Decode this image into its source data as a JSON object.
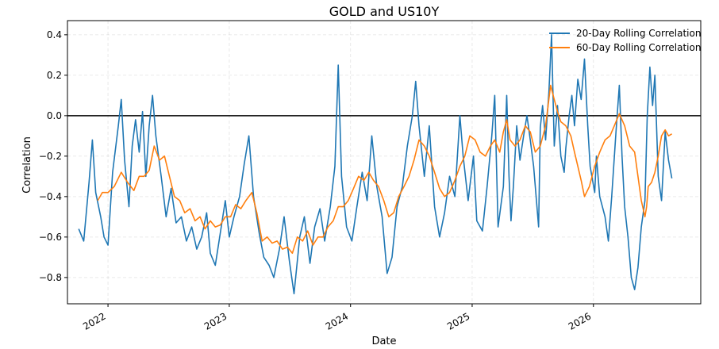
{
  "chart_data": {
    "type": "line",
    "title": "GOLD and US10Y",
    "xlabel": "Date",
    "ylabel": "Correlation",
    "xlim": [
      "2021-09-01",
      "2026-11-20"
    ],
    "ylim": [
      -0.93,
      0.47
    ],
    "x_ticks": [
      {
        "date": "2022-01-01",
        "label": "2022"
      },
      {
        "date": "2023-01-01",
        "label": "2023"
      },
      {
        "date": "2024-01-01",
        "label": "2024"
      },
      {
        "date": "2025-01-01",
        "label": "2025"
      },
      {
        "date": "2026-01-01",
        "label": "2026"
      }
    ],
    "y_ticks": [
      -0.8,
      -0.6,
      -0.4,
      -0.2,
      0.0,
      0.2,
      0.4
    ],
    "y_tick_labels": [
      "−0.8",
      "−0.6",
      "−0.4",
      "−0.2",
      "0.0",
      "0.2",
      "0.4"
    ],
    "reference_line": 0.0,
    "grid": true,
    "legend_position": "top-right",
    "series": [
      {
        "name": "20-Day Rolling Correlation",
        "color": "#1f77b4",
        "points": [
          [
            "2021-10-05",
            -0.56
          ],
          [
            "2021-10-20",
            -0.62
          ],
          [
            "2021-11-05",
            -0.33
          ],
          [
            "2021-11-15",
            -0.12
          ],
          [
            "2021-11-25",
            -0.38
          ],
          [
            "2021-12-10",
            -0.5
          ],
          [
            "2021-12-20",
            -0.6
          ],
          [
            "2022-01-01",
            -0.64
          ],
          [
            "2022-01-15",
            -0.28
          ],
          [
            "2022-02-01",
            -0.05
          ],
          [
            "2022-02-10",
            0.08
          ],
          [
            "2022-02-20",
            -0.22
          ],
          [
            "2022-03-05",
            -0.45
          ],
          [
            "2022-03-15",
            -0.15
          ],
          [
            "2022-03-25",
            -0.02
          ],
          [
            "2022-04-05",
            -0.18
          ],
          [
            "2022-04-15",
            0.02
          ],
          [
            "2022-04-25",
            -0.3
          ],
          [
            "2022-05-05",
            -0.05
          ],
          [
            "2022-05-15",
            0.1
          ],
          [
            "2022-05-25",
            -0.1
          ],
          [
            "2022-06-10",
            -0.3
          ],
          [
            "2022-06-25",
            -0.5
          ],
          [
            "2022-07-10",
            -0.36
          ],
          [
            "2022-07-25",
            -0.53
          ],
          [
            "2022-08-10",
            -0.5
          ],
          [
            "2022-08-25",
            -0.62
          ],
          [
            "2022-09-10",
            -0.55
          ],
          [
            "2022-09-25",
            -0.66
          ],
          [
            "2022-10-10",
            -0.6
          ],
          [
            "2022-10-25",
            -0.48
          ],
          [
            "2022-11-05",
            -0.68
          ],
          [
            "2022-11-20",
            -0.74
          ],
          [
            "2022-12-05",
            -0.58
          ],
          [
            "2022-12-20",
            -0.42
          ],
          [
            "2023-01-01",
            -0.6
          ],
          [
            "2023-01-15",
            -0.5
          ],
          [
            "2023-02-01",
            -0.4
          ],
          [
            "2023-02-15",
            -0.24
          ],
          [
            "2023-03-01",
            -0.1
          ],
          [
            "2023-03-15",
            -0.4
          ],
          [
            "2023-04-01",
            -0.58
          ],
          [
            "2023-04-15",
            -0.7
          ],
          [
            "2023-05-01",
            -0.74
          ],
          [
            "2023-05-15",
            -0.8
          ],
          [
            "2023-06-01",
            -0.66
          ],
          [
            "2023-06-15",
            -0.5
          ],
          [
            "2023-07-01",
            -0.72
          ],
          [
            "2023-07-15",
            -0.88
          ],
          [
            "2023-08-01",
            -0.6
          ],
          [
            "2023-08-15",
            -0.5
          ],
          [
            "2023-09-01",
            -0.73
          ],
          [
            "2023-09-15",
            -0.55
          ],
          [
            "2023-10-01",
            -0.46
          ],
          [
            "2023-10-15",
            -0.62
          ],
          [
            "2023-11-01",
            -0.45
          ],
          [
            "2023-11-15",
            -0.25
          ],
          [
            "2023-11-25",
            0.25
          ],
          [
            "2023-12-05",
            -0.3
          ],
          [
            "2023-12-20",
            -0.55
          ],
          [
            "2024-01-05",
            -0.62
          ],
          [
            "2024-01-20",
            -0.45
          ],
          [
            "2024-02-05",
            -0.28
          ],
          [
            "2024-02-20",
            -0.42
          ],
          [
            "2024-03-05",
            -0.1
          ],
          [
            "2024-03-20",
            -0.35
          ],
          [
            "2024-04-05",
            -0.5
          ],
          [
            "2024-04-20",
            -0.78
          ],
          [
            "2024-05-05",
            -0.7
          ],
          [
            "2024-05-20",
            -0.45
          ],
          [
            "2024-06-05",
            -0.35
          ],
          [
            "2024-06-20",
            -0.15
          ],
          [
            "2024-07-05",
            0.0
          ],
          [
            "2024-07-15",
            0.17
          ],
          [
            "2024-07-25",
            -0.05
          ],
          [
            "2024-08-10",
            -0.3
          ],
          [
            "2024-08-25",
            -0.05
          ],
          [
            "2024-09-10",
            -0.45
          ],
          [
            "2024-09-25",
            -0.6
          ],
          [
            "2024-10-10",
            -0.48
          ],
          [
            "2024-10-25",
            -0.3
          ],
          [
            "2024-11-10",
            -0.4
          ],
          [
            "2024-11-25",
            0.0
          ],
          [
            "2024-12-05",
            -0.2
          ],
          [
            "2024-12-20",
            -0.42
          ],
          [
            "2025-01-05",
            -0.2
          ],
          [
            "2025-01-15",
            -0.52
          ],
          [
            "2025-02-01",
            -0.57
          ],
          [
            "2025-02-15",
            -0.35
          ],
          [
            "2025-03-01",
            -0.1
          ],
          [
            "2025-03-10",
            0.1
          ],
          [
            "2025-03-20",
            -0.55
          ],
          [
            "2025-04-05",
            -0.35
          ],
          [
            "2025-04-15",
            0.1
          ],
          [
            "2025-04-22",
            -0.3
          ],
          [
            "2025-04-28",
            -0.52
          ],
          [
            "2025-05-05",
            -0.35
          ],
          [
            "2025-05-15",
            -0.05
          ],
          [
            "2025-05-25",
            -0.22
          ],
          [
            "2025-06-05",
            -0.1
          ],
          [
            "2025-06-15",
            0.0
          ],
          [
            "2025-06-25",
            -0.12
          ],
          [
            "2025-07-05",
            -0.25
          ],
          [
            "2025-07-20",
            -0.55
          ],
          [
            "2025-07-25",
            -0.06
          ],
          [
            "2025-08-01",
            0.05
          ],
          [
            "2025-08-10",
            -0.12
          ],
          [
            "2025-08-20",
            0.12
          ],
          [
            "2025-08-28",
            0.4
          ],
          [
            "2025-09-05",
            -0.15
          ],
          [
            "2025-09-15",
            0.05
          ],
          [
            "2025-09-25",
            -0.2
          ],
          [
            "2025-10-05",
            -0.28
          ],
          [
            "2025-10-10",
            -0.16
          ],
          [
            "2025-10-20",
            0.0
          ],
          [
            "2025-10-28",
            0.1
          ],
          [
            "2025-11-05",
            -0.05
          ],
          [
            "2025-11-15",
            0.18
          ],
          [
            "2025-11-25",
            0.08
          ],
          [
            "2025-12-05",
            0.28
          ],
          [
            "2025-12-15",
            -0.05
          ],
          [
            "2025-12-22",
            -0.25
          ],
          [
            "2026-01-05",
            -0.38
          ],
          [
            "2026-01-10",
            -0.2
          ],
          [
            "2026-01-20",
            -0.4
          ],
          [
            "2026-02-05",
            -0.5
          ],
          [
            "2026-02-15",
            -0.62
          ],
          [
            "2026-02-25",
            -0.4
          ],
          [
            "2026-03-10",
            -0.08
          ],
          [
            "2026-03-20",
            0.15
          ],
          [
            "2026-03-28",
            -0.2
          ],
          [
            "2026-04-05",
            -0.45
          ],
          [
            "2026-04-15",
            -0.6
          ],
          [
            "2026-04-25",
            -0.8
          ],
          [
            "2026-05-05",
            -0.86
          ],
          [
            "2026-05-15",
            -0.75
          ],
          [
            "2026-05-25",
            -0.55
          ],
          [
            "2026-06-05",
            -0.42
          ],
          [
            "2026-06-12",
            0.0
          ],
          [
            "2026-06-20",
            0.24
          ],
          [
            "2026-06-28",
            0.05
          ],
          [
            "2026-07-05",
            0.2
          ],
          [
            "2026-07-15",
            -0.3
          ],
          [
            "2026-07-25",
            -0.42
          ],
          [
            "2026-08-05",
            -0.08
          ],
          [
            "2026-08-15",
            -0.22
          ],
          [
            "2026-08-25",
            -0.31
          ]
        ]
      },
      {
        "name": "60-Day Rolling Correlation",
        "color": "#ff7f0e",
        "points": [
          [
            "2021-12-01",
            -0.42
          ],
          [
            "2021-12-15",
            -0.38
          ],
          [
            "2022-01-01",
            -0.38
          ],
          [
            "2022-01-20",
            -0.35
          ],
          [
            "2022-02-10",
            -0.28
          ],
          [
            "2022-03-01",
            -0.33
          ],
          [
            "2022-03-20",
            -0.37
          ],
          [
            "2022-04-05",
            -0.3
          ],
          [
            "2022-04-20",
            -0.3
          ],
          [
            "2022-05-05",
            -0.27
          ],
          [
            "2022-05-20",
            -0.15
          ],
          [
            "2022-06-05",
            -0.22
          ],
          [
            "2022-06-20",
            -0.2
          ],
          [
            "2022-07-05",
            -0.3
          ],
          [
            "2022-07-20",
            -0.4
          ],
          [
            "2022-08-05",
            -0.42
          ],
          [
            "2022-08-20",
            -0.48
          ],
          [
            "2022-09-05",
            -0.46
          ],
          [
            "2022-09-20",
            -0.52
          ],
          [
            "2022-10-05",
            -0.5
          ],
          [
            "2022-10-20",
            -0.56
          ],
          [
            "2022-11-05",
            -0.52
          ],
          [
            "2022-11-20",
            -0.55
          ],
          [
            "2022-12-05",
            -0.54
          ],
          [
            "2022-12-20",
            -0.5
          ],
          [
            "2023-01-05",
            -0.5
          ],
          [
            "2023-01-20",
            -0.44
          ],
          [
            "2023-02-05",
            -0.46
          ],
          [
            "2023-02-20",
            -0.42
          ],
          [
            "2023-03-10",
            -0.38
          ],
          [
            "2023-03-25",
            -0.48
          ],
          [
            "2023-04-10",
            -0.62
          ],
          [
            "2023-04-25",
            -0.6
          ],
          [
            "2023-05-10",
            -0.63
          ],
          [
            "2023-05-25",
            -0.62
          ],
          [
            "2023-06-10",
            -0.66
          ],
          [
            "2023-06-25",
            -0.65
          ],
          [
            "2023-07-10",
            -0.68
          ],
          [
            "2023-07-25",
            -0.6
          ],
          [
            "2023-08-10",
            -0.62
          ],
          [
            "2023-08-25",
            -0.57
          ],
          [
            "2023-09-10",
            -0.64
          ],
          [
            "2023-09-25",
            -0.6
          ],
          [
            "2023-10-10",
            -0.6
          ],
          [
            "2023-10-25",
            -0.55
          ],
          [
            "2023-11-10",
            -0.52
          ],
          [
            "2023-11-25",
            -0.45
          ],
          [
            "2023-12-10",
            -0.45
          ],
          [
            "2023-12-25",
            -0.42
          ],
          [
            "2024-01-10",
            -0.36
          ],
          [
            "2024-01-25",
            -0.3
          ],
          [
            "2024-02-10",
            -0.32
          ],
          [
            "2024-02-25",
            -0.28
          ],
          [
            "2024-03-10",
            -0.32
          ],
          [
            "2024-03-25",
            -0.35
          ],
          [
            "2024-04-10",
            -0.42
          ],
          [
            "2024-04-25",
            -0.5
          ],
          [
            "2024-05-10",
            -0.48
          ],
          [
            "2024-05-25",
            -0.4
          ],
          [
            "2024-06-10",
            -0.35
          ],
          [
            "2024-06-25",
            -0.3
          ],
          [
            "2024-07-10",
            -0.22
          ],
          [
            "2024-07-25",
            -0.12
          ],
          [
            "2024-08-10",
            -0.15
          ],
          [
            "2024-08-25",
            -0.2
          ],
          [
            "2024-09-10",
            -0.28
          ],
          [
            "2024-09-25",
            -0.36
          ],
          [
            "2024-10-10",
            -0.4
          ],
          [
            "2024-10-25",
            -0.38
          ],
          [
            "2024-11-10",
            -0.32
          ],
          [
            "2024-11-25",
            -0.25
          ],
          [
            "2024-12-10",
            -0.2
          ],
          [
            "2024-12-25",
            -0.1
          ],
          [
            "2025-01-10",
            -0.12
          ],
          [
            "2025-01-25",
            -0.18
          ],
          [
            "2025-02-10",
            -0.2
          ],
          [
            "2025-02-25",
            -0.15
          ],
          [
            "2025-03-10",
            -0.12
          ],
          [
            "2025-03-25",
            -0.18
          ],
          [
            "2025-04-05",
            -0.08
          ],
          [
            "2025-04-15",
            -0.02
          ],
          [
            "2025-04-25",
            -0.12
          ],
          [
            "2025-05-10",
            -0.15
          ],
          [
            "2025-05-25",
            -0.12
          ],
          [
            "2025-06-10",
            -0.05
          ],
          [
            "2025-06-25",
            -0.08
          ],
          [
            "2025-07-10",
            -0.18
          ],
          [
            "2025-07-25",
            -0.15
          ],
          [
            "2025-08-10",
            -0.05
          ],
          [
            "2025-08-25",
            0.15
          ],
          [
            "2025-09-05",
            0.08
          ],
          [
            "2025-09-15",
            0.02
          ],
          [
            "2025-09-25",
            -0.03
          ],
          [
            "2025-10-10",
            -0.05
          ],
          [
            "2025-10-25",
            -0.1
          ],
          [
            "2025-11-05",
            -0.18
          ],
          [
            "2025-11-15",
            -0.25
          ],
          [
            "2025-11-25",
            -0.32
          ],
          [
            "2025-12-05",
            -0.4
          ],
          [
            "2025-12-20",
            -0.35
          ],
          [
            "2026-01-05",
            -0.25
          ],
          [
            "2026-01-20",
            -0.18
          ],
          [
            "2026-02-05",
            -0.12
          ],
          [
            "2026-02-20",
            -0.1
          ],
          [
            "2026-03-05",
            -0.05
          ],
          [
            "2026-03-20",
            0.01
          ],
          [
            "2026-04-05",
            -0.05
          ],
          [
            "2026-04-20",
            -0.15
          ],
          [
            "2026-05-05",
            -0.18
          ],
          [
            "2026-05-15",
            -0.3
          ],
          [
            "2026-05-25",
            -0.42
          ],
          [
            "2026-06-05",
            -0.5
          ],
          [
            "2026-06-10",
            -0.45
          ],
          [
            "2026-06-15",
            -0.35
          ],
          [
            "2026-06-25",
            -0.33
          ],
          [
            "2026-07-05",
            -0.28
          ],
          [
            "2026-07-15",
            -0.2
          ],
          [
            "2026-07-25",
            -0.1
          ],
          [
            "2026-08-05",
            -0.07
          ],
          [
            "2026-08-15",
            -0.1
          ],
          [
            "2026-08-25",
            -0.09
          ]
        ]
      }
    ]
  }
}
